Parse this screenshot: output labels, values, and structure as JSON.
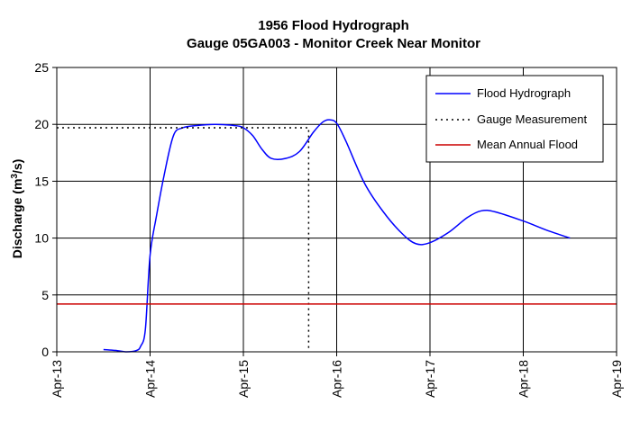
{
  "chart_data": {
    "type": "line",
    "title": "1956 Flood Hydrograph",
    "subtitle": "Gauge 05GA003 - Monitor Creek Near Monitor",
    "ylabel": "Discharge (m³/s)",
    "ylabel_parts": {
      "before": "Discharge (m",
      "sup": "3",
      "after": "/s)"
    },
    "xlabel": "",
    "x_ticks": [
      "Apr-13",
      "Apr-14",
      "Apr-15",
      "Apr-16",
      "Apr-17",
      "Apr-18",
      "Apr-19"
    ],
    "y_ticks": [
      0,
      5,
      10,
      15,
      20,
      25
    ],
    "xlim": [
      0,
      6
    ],
    "ylim": [
      0,
      25
    ],
    "grid": true,
    "legend_position": "top-right",
    "series": [
      {
        "name": "Flood Hydrograph",
        "color": "#0000ff",
        "style": "solid",
        "points": [
          [
            0.5,
            0.2
          ],
          [
            0.65,
            0.1
          ],
          [
            0.75,
            0.0
          ],
          [
            0.85,
            0.1
          ],
          [
            0.9,
            0.5
          ],
          [
            0.95,
            2.0
          ],
          [
            1.0,
            8.5
          ],
          [
            1.07,
            12.0
          ],
          [
            1.15,
            15.5
          ],
          [
            1.25,
            19.0
          ],
          [
            1.35,
            19.7
          ],
          [
            1.5,
            19.9
          ],
          [
            1.7,
            20.0
          ],
          [
            1.9,
            19.9
          ],
          [
            2.0,
            19.7
          ],
          [
            2.1,
            19.0
          ],
          [
            2.2,
            17.8
          ],
          [
            2.3,
            17.0
          ],
          [
            2.45,
            17.0
          ],
          [
            2.6,
            17.6
          ],
          [
            2.75,
            19.3
          ],
          [
            2.85,
            20.2
          ],
          [
            2.92,
            20.4
          ],
          [
            3.0,
            20.1
          ],
          [
            3.1,
            18.5
          ],
          [
            3.3,
            14.8
          ],
          [
            3.5,
            12.3
          ],
          [
            3.7,
            10.4
          ],
          [
            3.85,
            9.5
          ],
          [
            4.0,
            9.6
          ],
          [
            4.2,
            10.5
          ],
          [
            4.4,
            11.8
          ],
          [
            4.55,
            12.4
          ],
          [
            4.7,
            12.3
          ],
          [
            5.0,
            11.5
          ],
          [
            5.25,
            10.7
          ],
          [
            5.5,
            10.0
          ]
        ]
      },
      {
        "name": "Gauge Measurement",
        "color": "#000000",
        "style": "dotted",
        "points": [
          [
            0,
            19.7
          ],
          [
            2.7,
            19.7
          ],
          [
            2.7,
            0
          ]
        ]
      },
      {
        "name": "Mean Annual Flood",
        "color": "#cc0000",
        "style": "solid",
        "points": [
          [
            0,
            4.2
          ],
          [
            6,
            4.2
          ]
        ]
      }
    ]
  }
}
